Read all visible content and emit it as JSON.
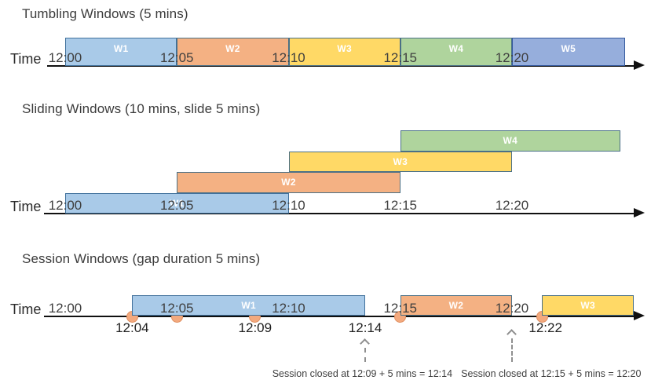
{
  "colors": {
    "axis": "#101010",
    "event_dot_fill": "#F3A97E",
    "event_dot_stroke": "#DF8F60",
    "annotation_gray": "#8F8F8F",
    "tick_text": "#3F3F3F",
    "window_label_text": "#FFFFFF"
  },
  "sections": [
    {
      "id": "tumbling",
      "title": "Tumbling Windows (5 mins)",
      "time_axis_label": "Time",
      "ticks": [
        {
          "label": "12:00",
          "min": 0
        },
        {
          "label": "12:05",
          "min": 5
        },
        {
          "label": "12:10",
          "min": 10
        },
        {
          "label": "12:15",
          "min": 15
        },
        {
          "label": "12:20",
          "min": 20
        }
      ],
      "windows": [
        {
          "label": "W1",
          "start": "12:00",
          "end": "12:05",
          "start_min": 0,
          "end_min": 5,
          "fill": "#A9CAE8",
          "border": "#41719C"
        },
        {
          "label": "W2",
          "start": "12:05",
          "end": "12:10",
          "start_min": 5,
          "end_min": 10,
          "fill": "#F4B183",
          "border": "#4A7086"
        },
        {
          "label": "W3",
          "start": "12:10",
          "end": "12:15",
          "start_min": 10,
          "end_min": 15,
          "fill": "#FFD966",
          "border": "#4A7086"
        },
        {
          "label": "W4",
          "start": "12:15",
          "end": "12:20",
          "start_min": 15,
          "end_min": 20,
          "fill": "#AFD49D",
          "border": "#4A7086"
        },
        {
          "label": "W5",
          "start": "12:20",
          "end": "",
          "start_min": 20,
          "end_min": 25.05,
          "fill": "#96AEDC",
          "border": "#34599E"
        }
      ]
    },
    {
      "id": "sliding",
      "title": "Sliding Windows (10 mins, slide 5 mins)",
      "time_axis_label": "Time",
      "ticks": [
        {
          "label": "12:00",
          "min": 0
        },
        {
          "label": "12:05",
          "min": 5
        },
        {
          "label": "12:10",
          "min": 10
        },
        {
          "label": "12:15",
          "min": 15
        },
        {
          "label": "12:20",
          "min": 20
        }
      ],
      "windows": [
        {
          "label": "W1",
          "start": "12:00",
          "end": "12:10",
          "start_min": 0,
          "end_min": 10,
          "level": 0,
          "fill": "#A9CAE8",
          "border": "#41719C"
        },
        {
          "label": "W2",
          "start": "12:05",
          "end": "12:15",
          "start_min": 5,
          "end_min": 15,
          "level": 1,
          "fill": "#F4B183",
          "border": "#4A7086"
        },
        {
          "label": "W3",
          "start": "12:10",
          "end": "12:20",
          "start_min": 10,
          "end_min": 20,
          "level": 2,
          "fill": "#FFD966",
          "border": "#4A7086"
        },
        {
          "label": "W4",
          "start": "12:15",
          "end": "",
          "start_min": 15,
          "end_min": 24.85,
          "level": 3,
          "fill": "#AFD49D",
          "border": "#4A7086"
        }
      ]
    },
    {
      "id": "session",
      "title": "Session Windows (gap duration 5 mins)",
      "time_axis_label": "Time",
      "ticks": [
        {
          "label": "12:00",
          "min": 0
        },
        {
          "label": "12:05",
          "min": 5
        },
        {
          "label": "12:10",
          "min": 10
        },
        {
          "label": "12:15",
          "min": 15
        },
        {
          "label": "12:20",
          "min": 20
        }
      ],
      "windows": [
        {
          "label": "W1",
          "start": "12:04",
          "end": "12:14",
          "start_min": 3,
          "end_min": 13.43,
          "fill": "#A9CAE8",
          "border": "#41719C"
        },
        {
          "label": "W2",
          "start": "12:15",
          "end": "12:20",
          "start_min": 15,
          "end_min": 20,
          "fill": "#F4B183",
          "border": "#4A7086"
        },
        {
          "label": "W3",
          "start": "12:22",
          "end": "",
          "start_min": 21.35,
          "end_min": 25.45,
          "fill": "#FFD966",
          "border": "#4A7086"
        }
      ],
      "events": [
        3,
        5,
        8.5,
        15,
        21.35
      ],
      "event_labels": [
        {
          "label": "12:04",
          "min": 3
        },
        {
          "label": "12:09",
          "min": 8.5
        },
        {
          "label": "12:14",
          "min": 13.43
        },
        {
          "label": "12:22",
          "min": 21.5
        }
      ],
      "annotations": [
        {
          "text": "Session closed at 12:09 + 5 mins = 12:14",
          "arrow_min": 13.43,
          "text_min": 13.3
        },
        {
          "text": "Session closed at 12:15 + 5 mins = 12:20",
          "arrow_min": 20,
          "text_min": 21.75
        }
      ]
    }
  ]
}
